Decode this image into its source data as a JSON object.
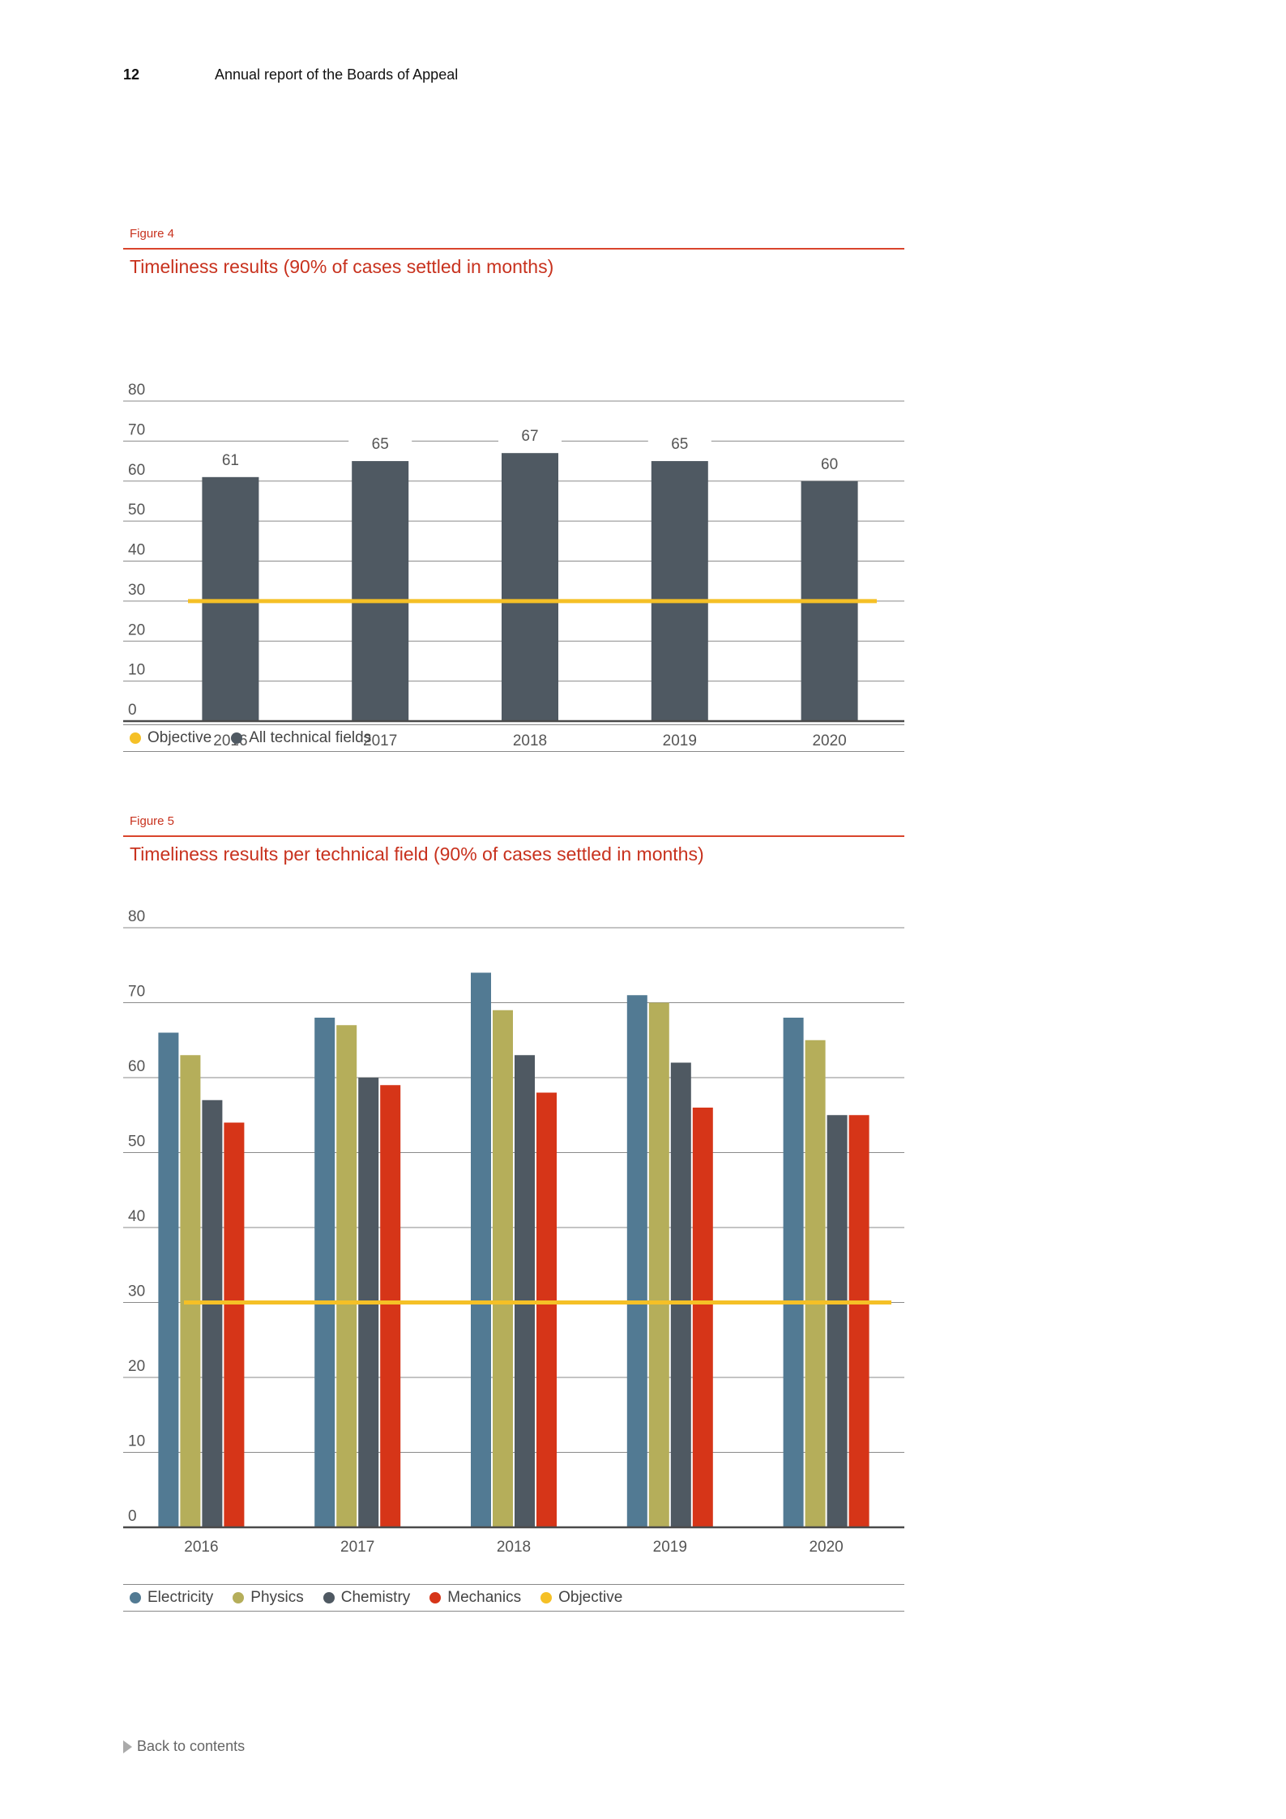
{
  "header": {
    "page_number": "12",
    "title": "Annual report of the Boards of Appeal"
  },
  "figures": [
    {
      "label": "Figure 4",
      "title": "Timeliness results (90% of cases settled in months)",
      "legend": [
        {
          "name": "Objective",
          "color": "#f5c026"
        },
        {
          "name": "All technical fields",
          "color": "#4f5962"
        }
      ]
    },
    {
      "label": "Figure 5",
      "title": "Timeliness results per technical field (90% of cases settled in months)",
      "legend": [
        {
          "name": "Electricity",
          "color": "#527a93"
        },
        {
          "name": "Physics",
          "color": "#b5ae5a"
        },
        {
          "name": "Chemistry",
          "color": "#4f5962"
        },
        {
          "name": "Mechanics",
          "color": "#d63518"
        },
        {
          "name": "Objective",
          "color": "#f5c026"
        }
      ]
    }
  ],
  "chart_data": [
    {
      "type": "bar",
      "title": "Timeliness results (90% of cases settled in months)",
      "categories": [
        "2016",
        "2017",
        "2018",
        "2019",
        "2020"
      ],
      "series": [
        {
          "name": "All technical fields",
          "values": [
            61,
            65,
            67,
            65,
            60
          ],
          "color": "#4f5962"
        }
      ],
      "objective": {
        "name": "Objective",
        "value": 30,
        "color": "#f5c026"
      },
      "ylim": [
        0,
        80
      ],
      "yticks": [
        0,
        10,
        20,
        30,
        40,
        50,
        60,
        70,
        80
      ],
      "data_labels": true,
      "grid": true,
      "legend_position": "bottom"
    },
    {
      "type": "bar",
      "title": "Timeliness results per technical field (90% of cases settled in months)",
      "categories": [
        "2016",
        "2017",
        "2018",
        "2019",
        "2020"
      ],
      "series": [
        {
          "name": "Electricity",
          "values": [
            66,
            68,
            74,
            71,
            68
          ],
          "color": "#527a93"
        },
        {
          "name": "Physics",
          "values": [
            63,
            67,
            69,
            70,
            65
          ],
          "color": "#b5ae5a"
        },
        {
          "name": "Chemistry",
          "values": [
            57,
            60,
            63,
            62,
            55
          ],
          "color": "#4f5962"
        },
        {
          "name": "Mechanics",
          "values": [
            54,
            59,
            58,
            56,
            55
          ],
          "color": "#d63518"
        }
      ],
      "objective": {
        "name": "Objective",
        "value": 30,
        "color": "#f5c026"
      },
      "ylim": [
        0,
        80
      ],
      "yticks": [
        0,
        10,
        20,
        30,
        40,
        50,
        60,
        70,
        80
      ],
      "data_labels": false,
      "grid": true,
      "legend_position": "bottom"
    }
  ],
  "footer": {
    "back_link": "Back to contents"
  }
}
